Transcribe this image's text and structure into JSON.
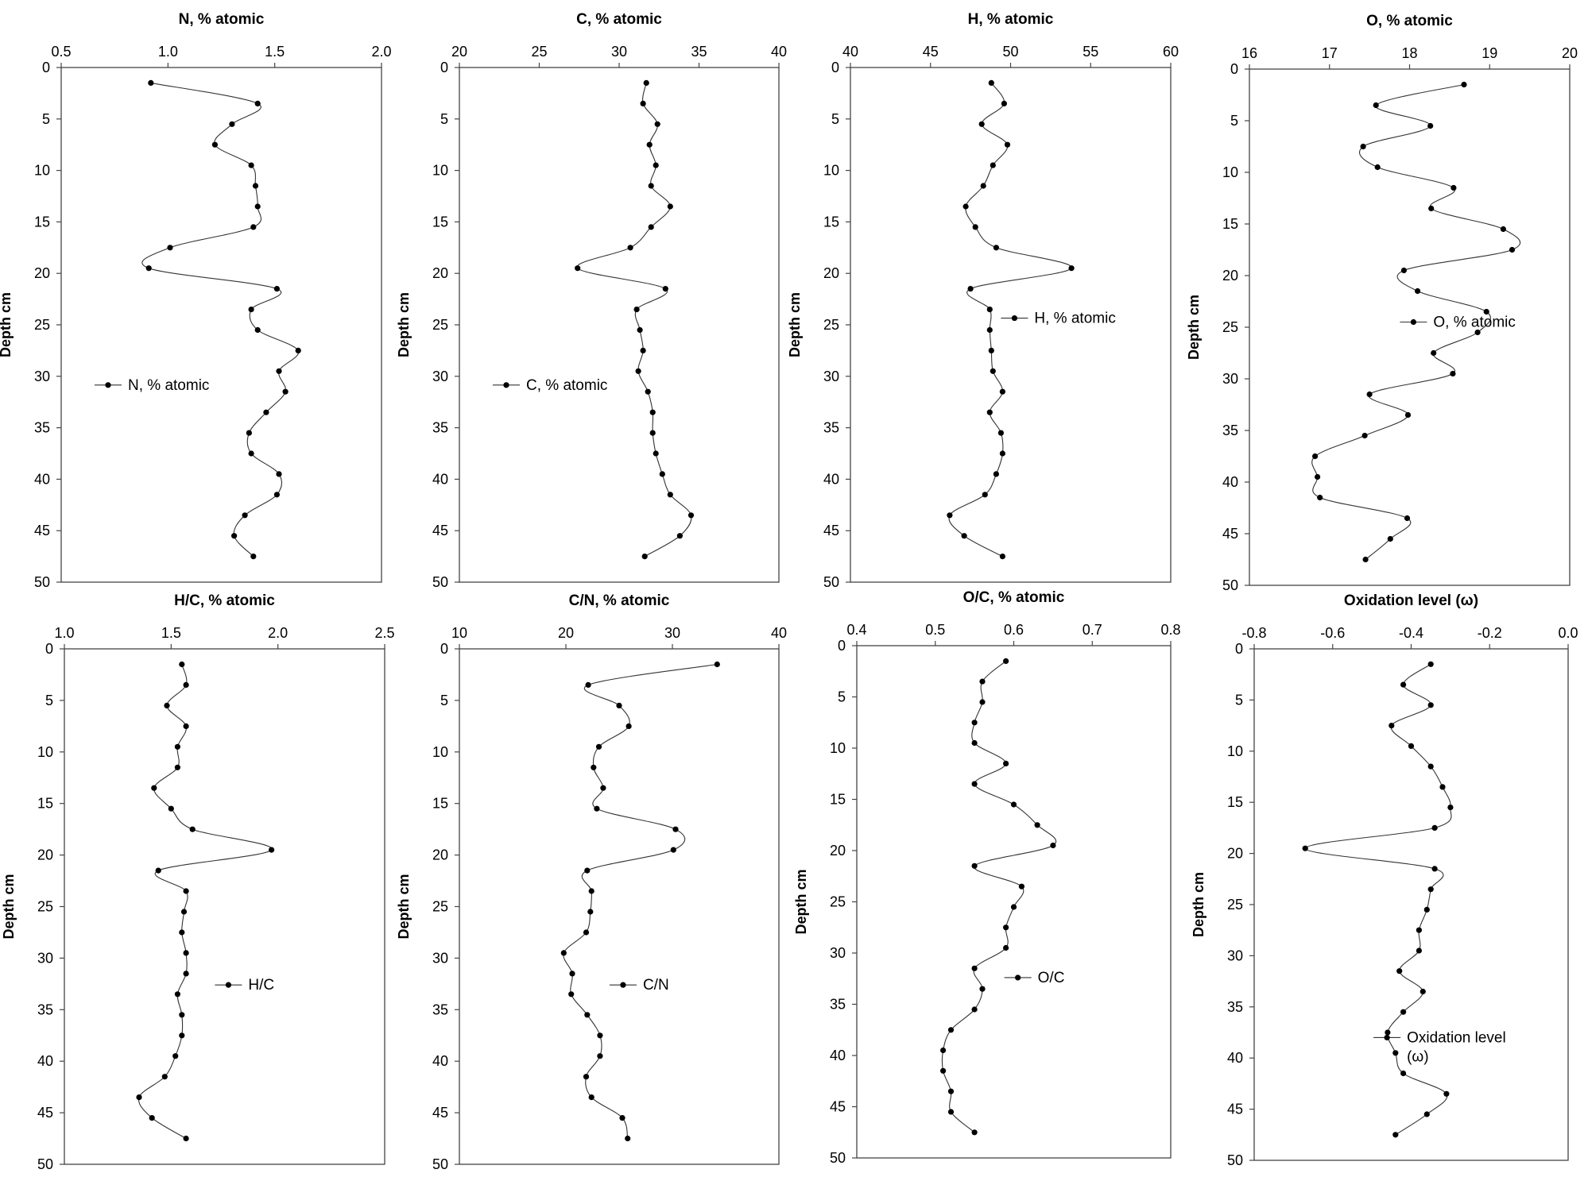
{
  "chart_data": [
    {
      "type": "line",
      "title": "N, % atomic",
      "xlabel": "N, % atomic",
      "ylabel": "Depth cm",
      "xlim": [
        0.5,
        2.0
      ],
      "xticks": [
        "0.5",
        "1.0",
        "1.5",
        "2.0"
      ],
      "ylim": [
        0,
        50
      ],
      "yticks": [
        "0",
        "5",
        "10",
        "15",
        "20",
        "25",
        "30",
        "35",
        "40",
        "45",
        "50"
      ],
      "legend": "N, % atomic",
      "legend_position": "lower-left",
      "depth": [
        1.5,
        3.5,
        5.5,
        7.5,
        9.5,
        11.5,
        13.5,
        15.5,
        17.5,
        19.5,
        21.5,
        23.5,
        25.5,
        27.5,
        29.5,
        31.5,
        33.5,
        35.5,
        37.5,
        39.5,
        41.5,
        43.5,
        45.5,
        47.5
      ],
      "values": [
        0.92,
        1.42,
        1.3,
        1.22,
        1.39,
        1.41,
        1.42,
        1.4,
        1.01,
        0.91,
        1.51,
        1.39,
        1.42,
        1.61,
        1.52,
        1.55,
        1.46,
        1.38,
        1.39,
        1.52,
        1.51,
        1.36,
        1.31,
        1.4
      ]
    },
    {
      "type": "line",
      "title": "C, % atomic",
      "xlabel": "C, % atomic",
      "ylabel": "Depth cm",
      "xlim": [
        20,
        40
      ],
      "xticks": [
        "20",
        "25",
        "30",
        "35",
        "40"
      ],
      "ylim": [
        0,
        50
      ],
      "yticks": [
        "0",
        "5",
        "10",
        "15",
        "20",
        "25",
        "30",
        "35",
        "40",
        "45",
        "50"
      ],
      "legend": "C, % atomic",
      "legend_position": "lower-left",
      "depth": [
        1.5,
        3.5,
        5.5,
        7.5,
        9.5,
        11.5,
        13.5,
        15.5,
        17.5,
        19.5,
        21.5,
        23.5,
        25.5,
        27.5,
        29.5,
        31.5,
        33.5,
        35.5,
        37.5,
        39.5,
        41.5,
        43.5,
        45.5,
        47.5
      ],
      "values": [
        31.7,
        31.5,
        32.4,
        31.9,
        32.3,
        32.0,
        33.2,
        32.0,
        30.7,
        27.4,
        32.9,
        31.1,
        31.3,
        31.5,
        31.2,
        31.8,
        32.1,
        32.1,
        32.3,
        32.7,
        33.2,
        34.5,
        33.8,
        31.6
      ]
    },
    {
      "type": "line",
      "title": "H, % atomic",
      "xlabel": "H, % atomic",
      "ylabel": "Depth cm",
      "xlim": [
        40,
        60
      ],
      "xticks": [
        "40",
        "45",
        "50",
        "55",
        "60"
      ],
      "ylim": [
        0,
        50
      ],
      "yticks": [
        "0",
        "5",
        "10",
        "15",
        "20",
        "25",
        "30",
        "35",
        "40",
        "45",
        "50"
      ],
      "legend": "H, % atomic",
      "legend_position": "center-right",
      "depth": [
        1.5,
        3.5,
        5.5,
        7.5,
        9.5,
        11.5,
        13.5,
        15.5,
        17.5,
        19.5,
        21.5,
        23.5,
        25.5,
        27.5,
        29.5,
        31.5,
        33.5,
        35.5,
        37.5,
        39.5,
        41.5,
        43.5,
        45.5,
        47.5
      ],
      "values": [
        48.8,
        49.6,
        48.2,
        49.8,
        48.9,
        48.3,
        47.2,
        47.8,
        49.1,
        53.8,
        47.5,
        48.7,
        48.7,
        48.8,
        48.9,
        49.5,
        48.7,
        49.4,
        49.5,
        49.1,
        48.4,
        46.2,
        47.1,
        49.5
      ]
    },
    {
      "type": "line",
      "title": "O, % atomic",
      "xlabel": "O, % atomic",
      "ylabel": "Depth cm",
      "xlim": [
        16,
        20
      ],
      "xticks": [
        "16",
        "17",
        "18",
        "19",
        "20"
      ],
      "ylim": [
        0,
        50
      ],
      "yticks": [
        "0",
        "5",
        "10",
        "15",
        "20",
        "25",
        "30",
        "35",
        "40",
        "45",
        "50"
      ],
      "legend": "O, % atomic",
      "legend_position": "center-right",
      "depth": [
        1.5,
        3.5,
        5.5,
        7.5,
        9.5,
        11.5,
        13.5,
        15.5,
        17.5,
        19.5,
        21.5,
        23.5,
        25.5,
        27.5,
        29.5,
        31.5,
        33.5,
        35.5,
        37.5,
        39.5,
        41.5,
        43.5,
        45.5,
        47.5
      ],
      "values": [
        18.68,
        17.58,
        18.26,
        17.42,
        17.6,
        18.55,
        18.27,
        19.17,
        19.28,
        17.93,
        18.1,
        18.96,
        18.85,
        18.3,
        18.54,
        17.5,
        17.98,
        17.44,
        16.82,
        16.85,
        16.88,
        17.97,
        17.76,
        17.45
      ]
    },
    {
      "type": "line",
      "title": "H/C, % atomic",
      "xlabel": "H/C, % atomic",
      "ylabel": "Depth cm",
      "xlim": [
        1.0,
        2.5
      ],
      "xticks": [
        "1.0",
        "1.5",
        "2.0",
        "2.5"
      ],
      "ylim": [
        0,
        50
      ],
      "yticks": [
        "0",
        "5",
        "10",
        "15",
        "20",
        "25",
        "30",
        "35",
        "40",
        "45",
        "50"
      ],
      "legend": "H/C",
      "legend_position": "center-right",
      "depth": [
        1.5,
        3.5,
        5.5,
        7.5,
        9.5,
        11.5,
        13.5,
        15.5,
        17.5,
        19.5,
        21.5,
        23.5,
        25.5,
        27.5,
        29.5,
        31.5,
        33.5,
        35.5,
        37.5,
        39.5,
        41.5,
        43.5,
        45.5,
        47.5
      ],
      "values": [
        1.55,
        1.57,
        1.48,
        1.57,
        1.53,
        1.53,
        1.42,
        1.5,
        1.6,
        1.97,
        1.44,
        1.57,
        1.56,
        1.55,
        1.57,
        1.57,
        1.53,
        1.55,
        1.55,
        1.52,
        1.47,
        1.35,
        1.41,
        1.57
      ]
    },
    {
      "type": "line",
      "title": "C/N, % atomic",
      "xlabel": "C/N, % atomic",
      "ylabel": "Depth cm",
      "xlim": [
        10,
        40
      ],
      "xticks": [
        "10",
        "20",
        "30",
        "40"
      ],
      "ylim": [
        0,
        50
      ],
      "yticks": [
        "0",
        "5",
        "10",
        "15",
        "20",
        "25",
        "30",
        "35",
        "40",
        "45",
        "50"
      ],
      "legend": "C/N",
      "legend_position": "center-right",
      "depth": [
        1.5,
        3.5,
        5.5,
        7.5,
        9.5,
        11.5,
        13.5,
        15.5,
        17.5,
        19.5,
        21.5,
        23.5,
        25.5,
        27.5,
        29.5,
        31.5,
        33.5,
        35.5,
        37.5,
        39.5,
        41.5,
        43.5,
        45.5,
        47.5
      ],
      "values": [
        34.2,
        22.1,
        25.0,
        25.9,
        23.1,
        22.6,
        23.5,
        22.9,
        30.3,
        30.1,
        22.0,
        22.4,
        22.3,
        21.9,
        19.8,
        20.6,
        20.5,
        22.0,
        23.2,
        23.2,
        21.9,
        22.4,
        25.3,
        25.8
      ]
    },
    {
      "type": "line",
      "title": "O/C, % atomic",
      "xlabel": "O/C, % atomic",
      "ylabel": "Depth cm",
      "xlim": [
        0.4,
        0.8
      ],
      "xticks": [
        "0.4",
        "0.5",
        "0.6",
        "0.7",
        "0.8"
      ],
      "ylim": [
        0,
        50
      ],
      "yticks": [
        "0",
        "5",
        "10",
        "15",
        "20",
        "25",
        "30",
        "35",
        "40",
        "45",
        "50"
      ],
      "legend": "O/C",
      "legend_position": "center-right",
      "depth": [
        1.5,
        3.5,
        5.5,
        7.5,
        9.5,
        11.5,
        13.5,
        15.5,
        17.5,
        19.5,
        21.5,
        23.5,
        25.5,
        27.5,
        29.5,
        31.5,
        33.5,
        35.5,
        37.5,
        39.5,
        41.5,
        43.5,
        45.5,
        47.5
      ],
      "values": [
        0.59,
        0.56,
        0.56,
        0.55,
        0.55,
        0.59,
        0.55,
        0.6,
        0.63,
        0.65,
        0.55,
        0.61,
        0.6,
        0.59,
        0.59,
        0.55,
        0.56,
        0.55,
        0.52,
        0.51,
        0.51,
        0.52,
        0.52,
        0.55
      ]
    },
    {
      "type": "line",
      "title": "Oxidation level (ω)",
      "xlabel": "Oxidation level (ω)",
      "ylabel": "Depth cm",
      "xlim": [
        -0.8,
        0.0
      ],
      "xticks": [
        "-0.8",
        "-0.6",
        "-0.4",
        "-0.2",
        "0.0"
      ],
      "ylim": [
        0,
        50
      ],
      "yticks": [
        "0",
        "5",
        "10",
        "15",
        "20",
        "25",
        "30",
        "35",
        "40",
        "45",
        "50"
      ],
      "legend": [
        "Oxidation level",
        "(ω)"
      ],
      "legend_position": "lower-right",
      "depth": [
        1.5,
        3.5,
        5.5,
        7.5,
        9.5,
        11.5,
        13.5,
        15.5,
        17.5,
        19.5,
        21.5,
        23.5,
        25.5,
        27.5,
        29.5,
        31.5,
        33.5,
        35.5,
        37.5,
        39.5,
        41.5,
        43.5,
        45.5,
        47.5
      ],
      "values": [
        -0.35,
        -0.42,
        -0.35,
        -0.45,
        -0.4,
        -0.35,
        -0.32,
        -0.3,
        -0.34,
        -0.67,
        -0.34,
        -0.35,
        -0.36,
        -0.38,
        -0.38,
        -0.43,
        -0.37,
        -0.42,
        -0.46,
        -0.44,
        -0.42,
        -0.31,
        -0.36,
        -0.44
      ]
    }
  ]
}
